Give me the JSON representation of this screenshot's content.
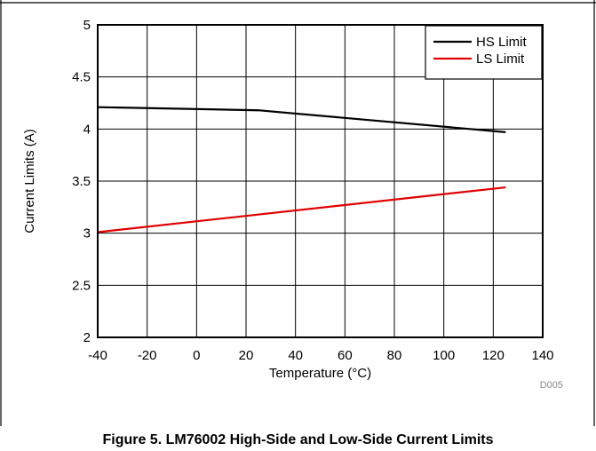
{
  "figure": {
    "caption": "Figure 5. LM76002 High-Side and Low-Side Current Limits",
    "code": "D005"
  },
  "chart_data": {
    "type": "line",
    "xlabel": "Temperature (°C)",
    "ylabel": "Current Limits (A)",
    "xlim": [
      -40,
      140
    ],
    "ylim": [
      2,
      5
    ],
    "xticks": [
      -40,
      -20,
      0,
      20,
      40,
      60,
      80,
      100,
      120,
      140
    ],
    "yticks": [
      2,
      2.5,
      3,
      3.5,
      4,
      4.5,
      5
    ],
    "grid": true,
    "legend": "top-right",
    "series": [
      {
        "name": "HS Limit",
        "color": "#000000",
        "x": [
          -40,
          25,
          125
        ],
        "y": [
          4.21,
          4.18,
          3.97
        ]
      },
      {
        "name": "LS Limit",
        "color": "#e00000",
        "x": [
          -40,
          125
        ],
        "y": [
          3.01,
          3.44
        ]
      }
    ]
  }
}
